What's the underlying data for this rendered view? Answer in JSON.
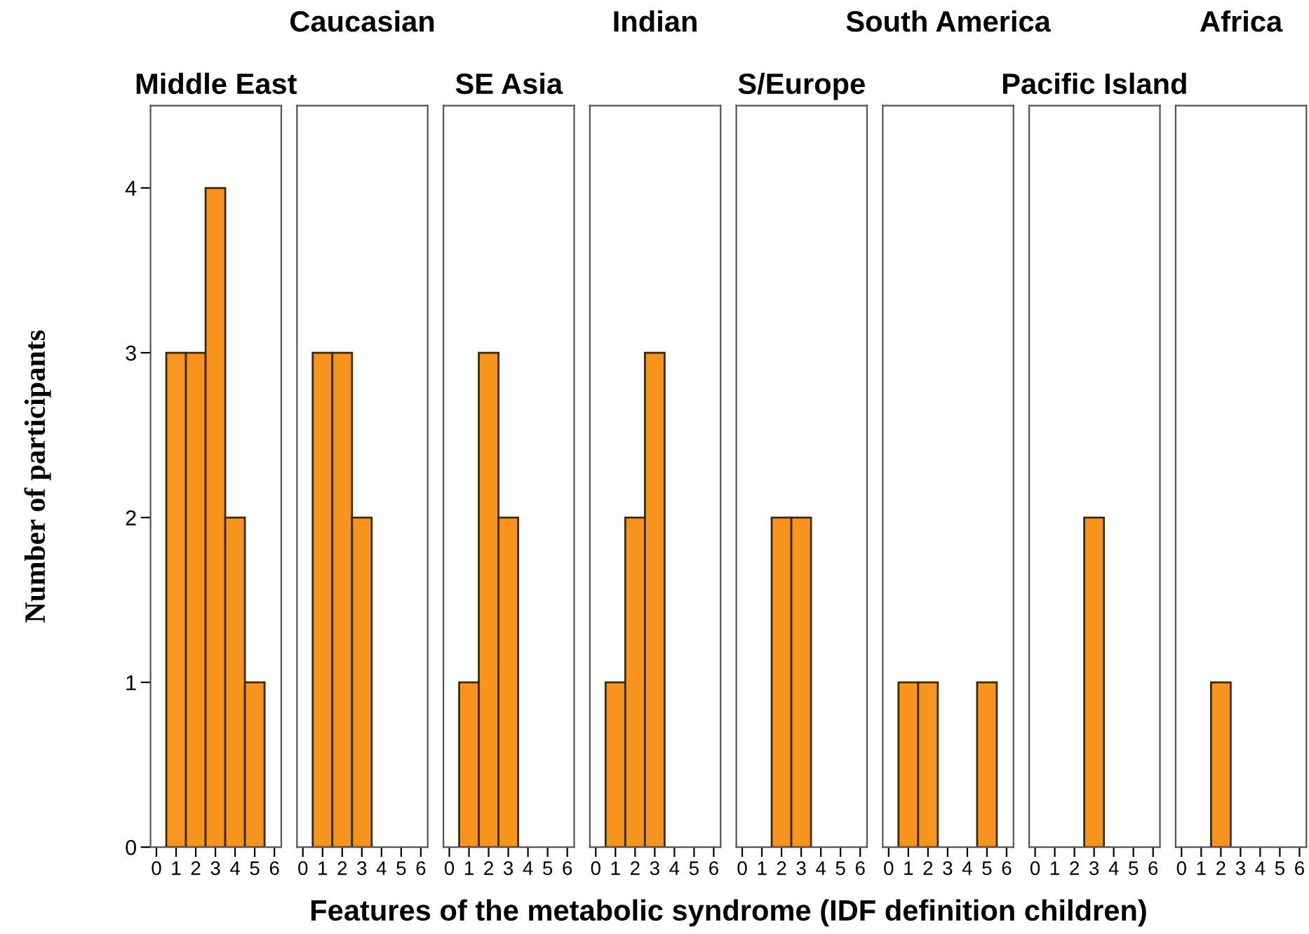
{
  "chart_data": [
    {
      "type": "histogram",
      "title": "Middle East",
      "xlabel": "Features of the metabolic syndrome (IDF definition children)",
      "ylabel": "Number of participants",
      "bins": [
        -0.5,
        0.5,
        1.5,
        2.5,
        3.5,
        4.5,
        5.5,
        6.5
      ],
      "values": [
        0,
        3,
        3,
        4,
        2,
        1,
        0
      ],
      "color": "#f7941d",
      "xlim": [
        -0.3,
        6.35
      ],
      "ylim": [
        0,
        4.5
      ],
      "xticks": [
        0,
        1,
        2,
        3,
        4,
        5,
        6
      ],
      "yticks": [
        0,
        1,
        2,
        3,
        4
      ],
      "grid": false
    },
    {
      "type": "histogram",
      "title": "Caucasian",
      "bins": [
        -0.5,
        0.5,
        1.5,
        2.5,
        3.5,
        4.5,
        5.5,
        6.5
      ],
      "values": [
        0,
        3,
        3,
        2,
        0,
        0,
        0
      ],
      "color": "#f7941d",
      "xlim": [
        -0.3,
        6.35
      ],
      "ylim": [
        0,
        4.5
      ],
      "xticks": [
        0,
        1,
        2,
        3,
        4,
        5,
        6
      ],
      "tick_labels": "x",
      "grid": false
    },
    {
      "type": "histogram",
      "title": "SE Asia",
      "bins": [
        -0.5,
        0.5,
        1.5,
        2.5,
        3.5,
        4.5,
        5.5,
        6.5
      ],
      "values": [
        0,
        1,
        3,
        2,
        0,
        0,
        0
      ],
      "color": "#f7941d",
      "xlim": [
        -0.3,
        6.35
      ],
      "ylim": [
        0,
        4.5
      ],
      "xticks": [
        0,
        1,
        2,
        3,
        4,
        5,
        6
      ],
      "tick_labels": "x",
      "grid": false
    },
    {
      "type": "histogram",
      "title": "Indian",
      "bins": [
        -0.5,
        0.5,
        1.5,
        2.5,
        3.5,
        4.5,
        5.5,
        6.5
      ],
      "values": [
        0,
        1,
        2,
        3,
        0,
        0,
        0
      ],
      "color": "#f7941d",
      "xlim": [
        -0.3,
        6.35
      ],
      "ylim": [
        0,
        4.5
      ],
      "xticks": [
        0,
        1,
        2,
        3,
        4,
        5,
        6
      ],
      "tick_labels": "x",
      "grid": false
    },
    {
      "type": "histogram",
      "title": "S/Europe",
      "bins": [
        -0.5,
        0.5,
        1.5,
        2.5,
        3.5,
        4.5,
        5.5,
        6.5
      ],
      "values": [
        0,
        0,
        2,
        2,
        0,
        0,
        0
      ],
      "color": "#f7941d",
      "xlim": [
        -0.3,
        6.35
      ],
      "ylim": [
        0,
        4.5
      ],
      "xticks": [
        0,
        1,
        2,
        3,
        4,
        5,
        6
      ],
      "tick_labels": "x",
      "grid": false
    },
    {
      "type": "histogram",
      "title": "South America",
      "bins": [
        -0.5,
        0.5,
        1.5,
        2.5,
        3.5,
        4.5,
        5.5,
        6.5
      ],
      "values": [
        0,
        1,
        1,
        0,
        0,
        1,
        0
      ],
      "color": "#f7941d",
      "xlim": [
        -0.3,
        6.35
      ],
      "ylim": [
        0,
        4.5
      ],
      "xticks": [
        0,
        1,
        2,
        3,
        4,
        5,
        6
      ],
      "tick_labels": "x",
      "grid": false
    },
    {
      "type": "histogram",
      "title": "Pacific Island",
      "bins": [
        -0.5,
        0.5,
        1.5,
        2.5,
        3.5,
        4.5,
        5.5,
        6.5
      ],
      "values": [
        0,
        0,
        0,
        2,
        0,
        0,
        0
      ],
      "color": "#f7941d",
      "xlim": [
        -0.3,
        6.35
      ],
      "ylim": [
        0,
        4.5
      ],
      "xticks": [
        0,
        1,
        2,
        3,
        4,
        5,
        6
      ],
      "tick_labels": "x",
      "grid": false
    },
    {
      "type": "histogram",
      "title": "Africa",
      "bins": [
        -0.5,
        0.5,
        1.5,
        2.5,
        3.5,
        4.5,
        5.5,
        6.5
      ],
      "values": [
        0,
        0,
        1,
        0,
        0,
        0,
        0
      ],
      "color": "#f7941d",
      "xlim": [
        -0.3,
        6.35
      ],
      "ylim": [
        0,
        4.5
      ],
      "xticks": [
        0,
        1,
        2,
        3,
        4,
        5,
        6
      ],
      "tick_labels": "x",
      "grid": false
    }
  ]
}
